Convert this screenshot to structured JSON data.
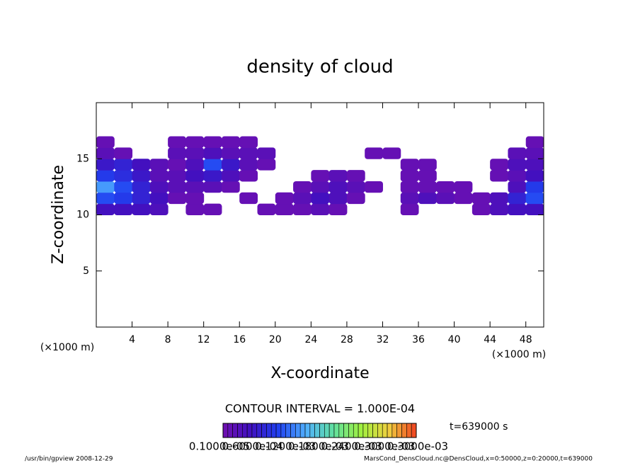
{
  "chart_data": {
    "type": "heatmap",
    "title": "density of cloud",
    "x_label": "X-coordinate",
    "y_label": "Z-coordinate",
    "x_unit": "(×1000 m)",
    "xlim": [
      0,
      50
    ],
    "ylim": [
      0,
      20
    ],
    "xticks": [
      4,
      8,
      12,
      16,
      20,
      24,
      28,
      32,
      36,
      40,
      44,
      48
    ],
    "yticks": [
      5,
      10,
      15
    ],
    "x": [
      1,
      3,
      5,
      7,
      9,
      11,
      13,
      15,
      17,
      19,
      21,
      23,
      25,
      27,
      29,
      31,
      33,
      35,
      37,
      39,
      41,
      43,
      45,
      47,
      49
    ],
    "y": [
      10.5,
      11.5,
      12.5,
      13.5,
      14.5,
      15.5,
      16.5
    ],
    "values": [
      [
        4e-05,
        4e-05,
        4e-05,
        3e-05,
        null,
        1e-05,
        1e-05,
        null,
        null,
        1e-05,
        1e-05,
        1e-05,
        2e-05,
        1e-05,
        null,
        null,
        null,
        1e-05,
        null,
        null,
        null,
        1e-05,
        3e-05,
        4e-05,
        4e-05
      ],
      [
        9e-05,
        8e-05,
        6e-05,
        4e-05,
        1e-05,
        1e-05,
        null,
        null,
        1e-05,
        null,
        1e-05,
        2e-05,
        4e-05,
        3e-05,
        1e-05,
        null,
        null,
        2e-05,
        3e-05,
        2e-05,
        1e-05,
        1e-05,
        3e-05,
        6e-05,
        9e-05
      ],
      [
        0.00012,
        9e-05,
        6e-05,
        3e-05,
        2e-05,
        2e-05,
        2e-05,
        1e-05,
        null,
        null,
        null,
        1e-05,
        2e-05,
        3e-05,
        2e-05,
        1e-05,
        null,
        1e-05,
        1e-05,
        1e-05,
        1e-05,
        null,
        null,
        3e-05,
        8e-05
      ],
      [
        8e-05,
        7e-05,
        5e-05,
        2e-05,
        2e-05,
        4e-05,
        5e-05,
        3e-05,
        1e-05,
        null,
        null,
        null,
        1e-05,
        2e-05,
        1e-05,
        null,
        null,
        1e-05,
        1e-05,
        null,
        null,
        null,
        1e-05,
        2e-05,
        4e-05
      ],
      [
        5e-05,
        6e-05,
        4e-05,
        2e-05,
        1e-05,
        3e-05,
        9e-05,
        5e-05,
        2e-05,
        1e-05,
        null,
        null,
        null,
        null,
        null,
        null,
        null,
        1e-05,
        1e-05,
        null,
        null,
        null,
        1e-05,
        3e-05,
        3e-05
      ],
      [
        2e-05,
        1e-05,
        null,
        null,
        2e-05,
        2e-05,
        3e-05,
        2e-05,
        2e-05,
        2e-05,
        null,
        null,
        null,
        null,
        null,
        1e-05,
        1e-05,
        null,
        null,
        null,
        null,
        null,
        null,
        2e-05,
        2e-05
      ],
      [
        1e-05,
        null,
        null,
        null,
        1e-05,
        1e-05,
        1e-05,
        1e-05,
        1e-05,
        null,
        null,
        null,
        null,
        null,
        null,
        null,
        null,
        null,
        null,
        null,
        null,
        null,
        null,
        null,
        1e-05
      ]
    ],
    "clim": [
      0,
      0.0003
    ],
    "colormap": [
      "#7010b0",
      "#4010c0",
      "#2040f0",
      "#50b0ff",
      "#60e0a0",
      "#a0f040",
      "#f0d040",
      "#f04020"
    ],
    "contour_interval_label": "CONTOUR INTERVAL = 1.000E-04",
    "time_label": "t=639000 s",
    "colorbar_labels": [
      "0.1000e-05",
      "0.6000e-04",
      "0.1200e-03",
      "0.1800e-03",
      "0.2400e-03",
      "0.3000e-03",
      "0.3000e-03"
    ],
    "footer_left": "/usr/bin/gpview  2008-12-29",
    "footer_right": "MarsCond_DensCloud.nc@DensCloud,x=0:50000,z=0:20000,t=639000"
  }
}
